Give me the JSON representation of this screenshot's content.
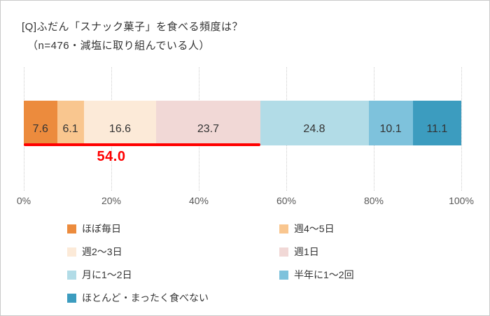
{
  "chart_data": {
    "type": "bar",
    "variant": "horizontal-stacked",
    "title": "[Q]ふだん「スナック菓子」を食べる頻度は？",
    "subtitle": "（n=476・減塩に取り組んでいる人）",
    "categories": [
      "ほぼ毎日",
      "週4～5日",
      "週2～3日",
      "週1日",
      "月に1～2日",
      "半年に1～2回",
      "ほとんど・まったく食べない"
    ],
    "series": [
      {
        "name": "ほぼ毎日",
        "value": 7.6,
        "color": "#EC8B3D"
      },
      {
        "name": "週4～5日",
        "value": 6.1,
        "color": "#F9C68F"
      },
      {
        "name": "週2～3日",
        "value": 16.6,
        "color": "#FCEAD8"
      },
      {
        "name": "週1日",
        "value": 23.7,
        "color": "#F1D8D6"
      },
      {
        "name": "月に1～2日",
        "value": 24.8,
        "color": "#B2DCE7"
      },
      {
        "name": "半年に1～2回",
        "value": 10.1,
        "color": "#7EC2DC"
      },
      {
        "name": "ほとんど・まったく食べない",
        "value": 11.1,
        "color": "#3C9CBF"
      }
    ],
    "annotation": {
      "label": "54.0",
      "span_percent": 54.0,
      "color": "#FF0000"
    },
    "x_ticks": [
      "0%",
      "20%",
      "40%",
      "60%",
      "80%",
      "100%"
    ],
    "xlim": [
      0,
      100
    ],
    "grid": true,
    "legend_position": "bottom"
  }
}
